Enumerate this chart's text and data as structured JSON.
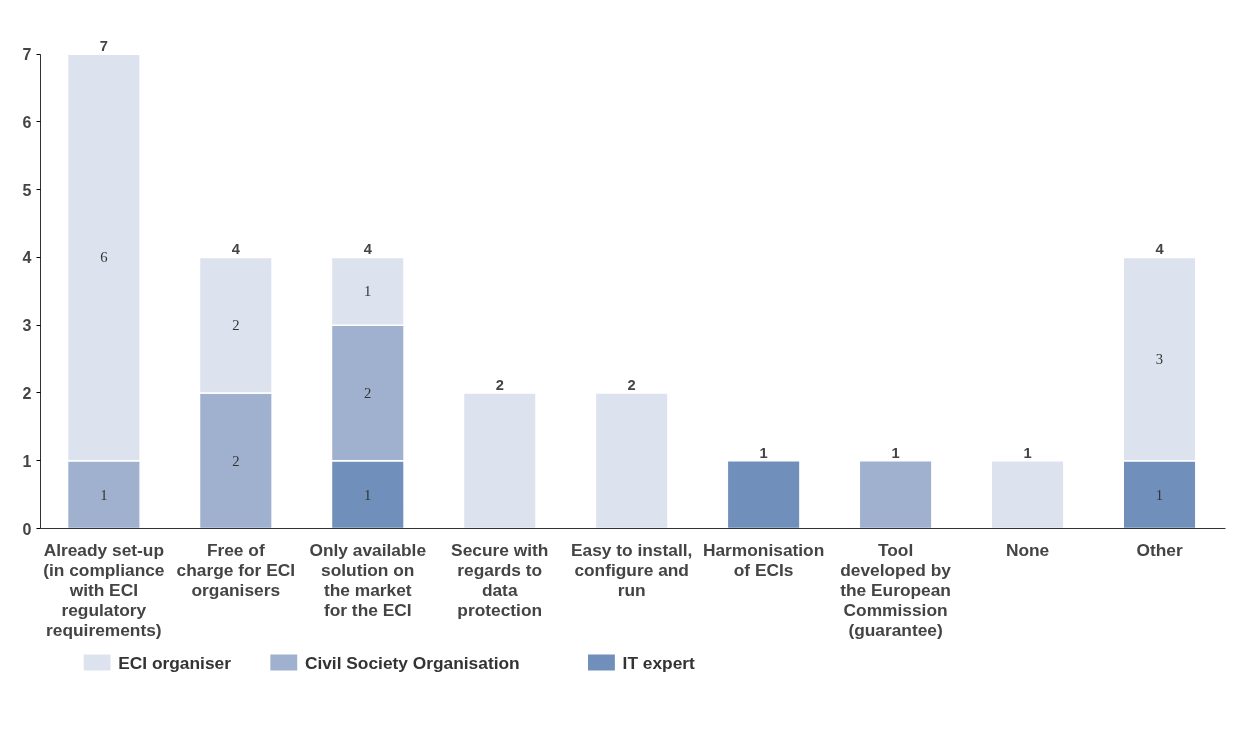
{
  "chart_data": {
    "type": "bar",
    "stacked": true,
    "categories": [
      "Already set-up\n(in compliance\nwith ECI\nregulatory\nrequirements)",
      "Free of\ncharge for ECI\norganisers",
      "Only available\nsolution on\nthe market\nfor the ECI",
      "Secure with\nregards to\ndata\nprotection",
      "Easy to install,\nconfigure and\nrun",
      "Harmonisation\nof ECIs",
      "Tool\ndeveloped by\nthe European\nCommission\n(guarantee)",
      "None",
      "Other"
    ],
    "series": [
      {
        "name": "IT expert",
        "color": "#7090bb",
        "values": [
          null,
          null,
          1,
          null,
          null,
          1,
          null,
          null,
          1
        ],
        "value_labels": [
          null,
          null,
          "1",
          null,
          null,
          null,
          null,
          null,
          "1"
        ]
      },
      {
        "name": "Civil Society Organisation",
        "color": "#9fb1cf",
        "values": [
          1,
          2,
          2,
          null,
          null,
          null,
          1,
          null,
          null
        ],
        "value_labels": [
          "1",
          "2",
          "2",
          null,
          null,
          null,
          null,
          null,
          null
        ]
      },
      {
        "name": "ECI organiser",
        "color": "#dde3ee",
        "values": [
          6,
          2,
          1,
          2,
          2,
          null,
          null,
          1,
          3
        ],
        "value_labels": [
          "6",
          "2",
          "1",
          null,
          null,
          null,
          null,
          null,
          "3"
        ]
      }
    ],
    "totals": [
      "7",
      "4",
      "4",
      "2",
      "2",
      "1",
      "1",
      "1",
      "4"
    ],
    "ylim": [
      0,
      7
    ],
    "yticks": [
      0,
      1,
      2,
      3,
      4,
      5,
      6,
      7
    ],
    "grid": false,
    "legend": "bottom left"
  }
}
